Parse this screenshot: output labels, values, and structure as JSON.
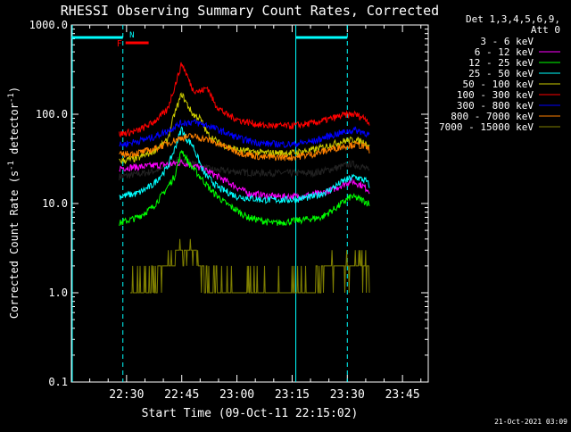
{
  "chart_data": {
    "type": "line",
    "title": "RHESSI Observing Summary Count Rates, Corrected",
    "xlabel": "Start Time (09-Oct-11 22:15:02)",
    "ylabel_main": "Corrected Count Rate (s",
    "ylabel_sup1": "-1",
    "ylabel_mid": " detector",
    "ylabel_sup2": "-1",
    "ylabel_end": ")",
    "yscale": "log",
    "ylim": [
      0.1,
      1000.0
    ],
    "xlim_min": [
      0,
      97
    ],
    "x_ticks": [
      {
        "min": 15,
        "label": "22:30"
      },
      {
        "min": 30,
        "label": "22:45"
      },
      {
        "min": 45,
        "label": "23:00"
      },
      {
        "min": 60,
        "label": "23:15"
      },
      {
        "min": 75,
        "label": "23:30"
      },
      {
        "min": 90,
        "label": "23:45"
      }
    ],
    "y_ticks": [
      {
        "value": 0.1,
        "label": "0.1"
      },
      {
        "value": 1.0,
        "label": "1.0"
      },
      {
        "value": 10.0,
        "label": "10.0"
      },
      {
        "value": 100.0,
        "label": "100.0"
      },
      {
        "value": 1000.0,
        "label": "1000.0"
      }
    ],
    "legend_header": [
      "Det 1,3,4,5,6,9,",
      "Att 0"
    ],
    "legend_placement": "top-right",
    "series": [
      {
        "name": "3 - 6 keV",
        "color": "#000000",
        "start": 13,
        "end": 81,
        "points": [
          [
            13,
            20
          ],
          [
            20,
            22
          ],
          [
            24,
            24
          ],
          [
            27,
            28
          ],
          [
            30,
            32
          ],
          [
            33,
            28
          ],
          [
            38,
            24
          ],
          [
            43,
            23
          ],
          [
            50,
            22
          ],
          [
            58,
            22
          ],
          [
            66,
            22
          ],
          [
            72,
            25
          ],
          [
            76,
            28
          ],
          [
            79,
            26
          ],
          [
            81,
            23
          ]
        ]
      },
      {
        "name": "6 - 12 keV",
        "color": "#ff00ff",
        "start": 13,
        "end": 81,
        "points": [
          [
            13,
            25
          ],
          [
            20,
            26
          ],
          [
            24,
            27
          ],
          [
            28,
            28
          ],
          [
            30,
            29
          ],
          [
            33,
            27
          ],
          [
            38,
            22
          ],
          [
            43,
            17
          ],
          [
            48,
            13
          ],
          [
            55,
            12
          ],
          [
            62,
            12
          ],
          [
            68,
            13
          ],
          [
            72,
            15
          ],
          [
            76,
            18
          ],
          [
            79,
            16
          ],
          [
            81,
            14
          ]
        ]
      },
      {
        "name": "12 - 25 keV",
        "color": "#00ff00",
        "start": 13,
        "end": 81,
        "points": [
          [
            13,
            6
          ],
          [
            18,
            7
          ],
          [
            22,
            9
          ],
          [
            25,
            13
          ],
          [
            28,
            20
          ],
          [
            30,
            40
          ],
          [
            32,
            28
          ],
          [
            35,
            20
          ],
          [
            38,
            14
          ],
          [
            42,
            10
          ],
          [
            48,
            7
          ],
          [
            55,
            6
          ],
          [
            62,
            6.5
          ],
          [
            68,
            7
          ],
          [
            72,
            9
          ],
          [
            76,
            12
          ],
          [
            79,
            11
          ],
          [
            81,
            10
          ]
        ]
      },
      {
        "name": "25 - 50 keV",
        "color": "#00ffff",
        "start": 13,
        "end": 81,
        "points": [
          [
            13,
            12
          ],
          [
            18,
            13
          ],
          [
            22,
            16
          ],
          [
            26,
            25
          ],
          [
            28,
            40
          ],
          [
            30,
            70
          ],
          [
            31,
            55
          ],
          [
            33,
            45
          ],
          [
            36,
            22
          ],
          [
            40,
            15
          ],
          [
            45,
            12
          ],
          [
            52,
            11
          ],
          [
            60,
            11
          ],
          [
            66,
            12
          ],
          [
            70,
            14
          ],
          [
            74,
            18
          ],
          [
            77,
            20
          ],
          [
            80,
            18
          ],
          [
            81,
            16
          ]
        ]
      },
      {
        "name": "50 - 100 keV",
        "color": "#cccc00",
        "start": 13,
        "end": 81,
        "points": [
          [
            13,
            30
          ],
          [
            18,
            32
          ],
          [
            22,
            38
          ],
          [
            26,
            50
          ],
          [
            28,
            100
          ],
          [
            30,
            170
          ],
          [
            31,
            140
          ],
          [
            33,
            100
          ],
          [
            35,
            90
          ],
          [
            37,
            60
          ],
          [
            40,
            48
          ],
          [
            45,
            40
          ],
          [
            52,
            37
          ],
          [
            60,
            37
          ],
          [
            66,
            40
          ],
          [
            70,
            45
          ],
          [
            74,
            50
          ],
          [
            77,
            52
          ],
          [
            80,
            48
          ],
          [
            81,
            45
          ]
        ]
      },
      {
        "name": "100 - 300 keV",
        "color": "#ff0000",
        "start": 13,
        "end": 81,
        "points": [
          [
            13,
            60
          ],
          [
            18,
            65
          ],
          [
            22,
            80
          ],
          [
            26,
            110
          ],
          [
            28,
            200
          ],
          [
            30,
            370
          ],
          [
            31,
            300
          ],
          [
            33,
            190
          ],
          [
            35,
            180
          ],
          [
            37,
            200
          ],
          [
            39,
            130
          ],
          [
            42,
            100
          ],
          [
            46,
            85
          ],
          [
            52,
            75
          ],
          [
            60,
            74
          ],
          [
            66,
            80
          ],
          [
            70,
            88
          ],
          [
            74,
            98
          ],
          [
            77,
            100
          ],
          [
            80,
            90
          ],
          [
            81,
            80
          ]
        ]
      },
      {
        "name": "300 - 800 keV",
        "color": "#0000ff",
        "start": 13,
        "end": 81,
        "points": [
          [
            13,
            45
          ],
          [
            18,
            50
          ],
          [
            22,
            55
          ],
          [
            26,
            65
          ],
          [
            30,
            80
          ],
          [
            33,
            82
          ],
          [
            37,
            75
          ],
          [
            42,
            62
          ],
          [
            46,
            53
          ],
          [
            52,
            47
          ],
          [
            60,
            46
          ],
          [
            66,
            50
          ],
          [
            70,
            57
          ],
          [
            74,
            63
          ],
          [
            77,
            67
          ],
          [
            80,
            62
          ],
          [
            81,
            58
          ]
        ]
      },
      {
        "name": "800 - 7000 keV",
        "color": "#ff8000",
        "start": 13,
        "end": 81,
        "points": [
          [
            13,
            35
          ],
          [
            18,
            37
          ],
          [
            22,
            40
          ],
          [
            26,
            47
          ],
          [
            30,
            55
          ],
          [
            33,
            57
          ],
          [
            37,
            52
          ],
          [
            42,
            43
          ],
          [
            46,
            37
          ],
          [
            52,
            33
          ],
          [
            60,
            33
          ],
          [
            66,
            36
          ],
          [
            70,
            40
          ],
          [
            74,
            44
          ],
          [
            77,
            46
          ],
          [
            80,
            43
          ],
          [
            81,
            40
          ]
        ]
      },
      {
        "name": "7000 - 15000 keV",
        "color": "#808000",
        "start": 13,
        "end": 81,
        "points": [
          [
            16,
            1.0
          ],
          [
            20,
            1.0
          ],
          [
            22,
            1.5
          ],
          [
            24,
            2.0
          ],
          [
            27,
            2.0
          ],
          [
            29,
            3.0
          ],
          [
            34,
            3.0
          ],
          [
            35,
            2.0
          ],
          [
            37,
            1.5
          ],
          [
            40,
            1.0
          ],
          [
            45,
            1.0
          ],
          [
            50,
            1.0
          ],
          [
            55,
            1.0
          ],
          [
            63,
            1.0
          ],
          [
            66,
            1.0
          ],
          [
            68,
            1.5
          ],
          [
            69,
            2.0
          ],
          [
            75,
            2.0
          ],
          [
            76,
            1.5
          ],
          [
            77,
            2.0
          ],
          [
            81,
            2.0
          ]
        ]
      }
    ],
    "attenuator_flags": [
      {
        "label": "N",
        "color": "#00ffff",
        "at_min": 15
      },
      {
        "label": "F",
        "color": "#ff0000",
        "at_min": 14
      }
    ],
    "footer_date": "21-Oct-2021 03:09"
  }
}
